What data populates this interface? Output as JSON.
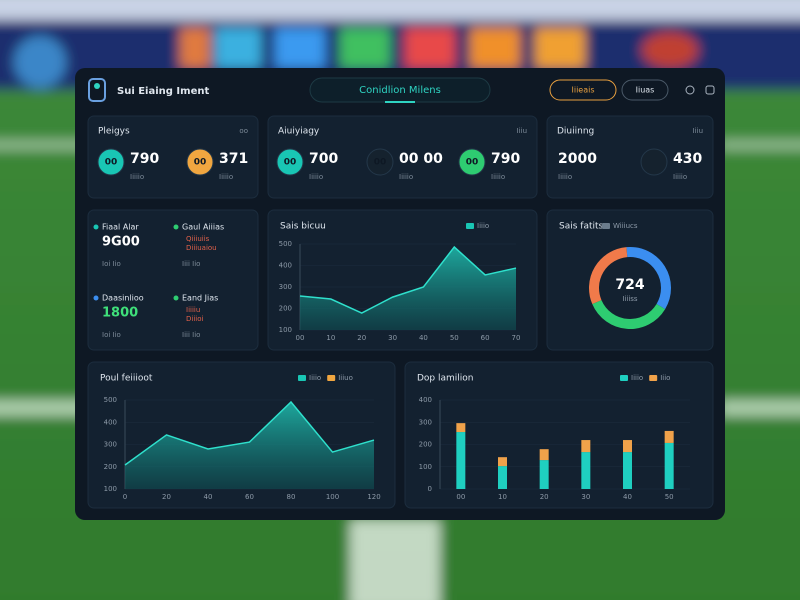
{
  "header": {
    "title": "Sui Eiaing Iment",
    "tab": "Conidlion Milens",
    "buttons": [
      "Iiieais",
      "Iiuas"
    ]
  },
  "stats": [
    {
      "title": "Pleigys",
      "corner": "oo",
      "items": [
        {
          "badge": "00",
          "color": "#19c6b4",
          "value": "790",
          "sub": "Iiiiio"
        },
        {
          "badge": "00",
          "color": "#f0a640",
          "value": "371",
          "sub": "Iiiiio"
        }
      ]
    },
    {
      "title": "Aiuiyiagy",
      "corner": "Iiiu",
      "items": [
        {
          "badge": "00",
          "color": "#19c6b4",
          "value": "700",
          "sub": "Iiiiio"
        },
        {
          "badge": "00",
          "color": "#15222e",
          "value": "00 00",
          "sub": "Iiiiio"
        },
        {
          "badge": "00",
          "color": "#2ecc71",
          "value": "790",
          "sub": "Iiiiio"
        }
      ]
    },
    {
      "title": "Diuiinng",
      "corner": "Iiiu",
      "items": [
        {
          "value": "2000",
          "sub": "Iiiiio"
        },
        {
          "color": "#15222e",
          "value": "430",
          "sub": "Iiiiio"
        }
      ]
    }
  ],
  "metrics": [
    {
      "name": "Fiaal Alar",
      "bullet": "#19c6b4",
      "value": "9G00",
      "value_color": "#ffffff",
      "sub": "Ioi Iio"
    },
    {
      "name": "Gaul Aiiias",
      "bullet": "#2ecc71",
      "lines": [
        "Qiiiuiis",
        "Diiiuaiou"
      ],
      "sub": "Iiii Iio"
    },
    {
      "name": "Daasinlioo",
      "bullet": "#3b8ef0",
      "value": "1800",
      "value_color": "#3fe07a",
      "sub": "Ioi Iio"
    },
    {
      "name": "Eand Jias",
      "bullet": "#2ecc71",
      "lines": [
        "Iiiiiu",
        "Diiioi"
      ],
      "sub": "Iiii Iio"
    }
  ],
  "charts": [
    {
      "type": "area",
      "title": "Sais bicuu",
      "legend": [
        {
          "name": "Iiiio",
          "color": "#19c6b4"
        }
      ],
      "categories": [
        "00",
        "10",
        "20",
        "30",
        "40",
        "50",
        "60",
        "70"
      ],
      "values": [
        258,
        244,
        179,
        253,
        300,
        486,
        356,
        388
      ],
      "ylim": [
        100,
        500
      ],
      "yticks": [
        100,
        200,
        300,
        400,
        500
      ],
      "color": "#2fe0cc"
    },
    {
      "type": "donut",
      "title": "Sais fatits",
      "legend": [
        {
          "name": "Wiiiucs",
          "color": "#6b7c8c"
        }
      ],
      "center": "724",
      "sub": "Iiiiss",
      "values": [
        35,
        35,
        30
      ],
      "colors": [
        "#3b8ef0",
        "#2ecc71",
        "#f07a4a"
      ]
    },
    {
      "type": "area",
      "title": "Poul feiiioot",
      "legend": [
        {
          "name": "Iiiio",
          "color": "#19c6b4"
        },
        {
          "name": "Iiiuo",
          "color": "#f0a640"
        }
      ],
      "categories": [
        "0",
        "20",
        "40",
        "60",
        "80",
        "100",
        "120"
      ],
      "values": [
        208,
        343,
        280,
        311,
        491,
        266,
        320
      ],
      "ylim": [
        100,
        500
      ],
      "yticks": [
        100,
        200,
        300,
        400,
        500
      ],
      "color": "#2fe0cc"
    },
    {
      "type": "bar",
      "title": "Dop lamilion",
      "categories": [
        "00",
        "10",
        "20",
        "30",
        "40",
        "50"
      ],
      "series": [
        {
          "name": "Iiiio",
          "color": "#1fcfc0",
          "values": [
            256,
            103,
            130,
            166,
            166,
            207
          ]
        },
        {
          "name": "Iiio",
          "color": "#f0a24a",
          "values": [
            40,
            40,
            49,
            54,
            54,
            54
          ]
        }
      ],
      "ylim": [
        0,
        400
      ],
      "yticks": [
        0,
        100,
        200,
        300,
        400
      ]
    }
  ]
}
